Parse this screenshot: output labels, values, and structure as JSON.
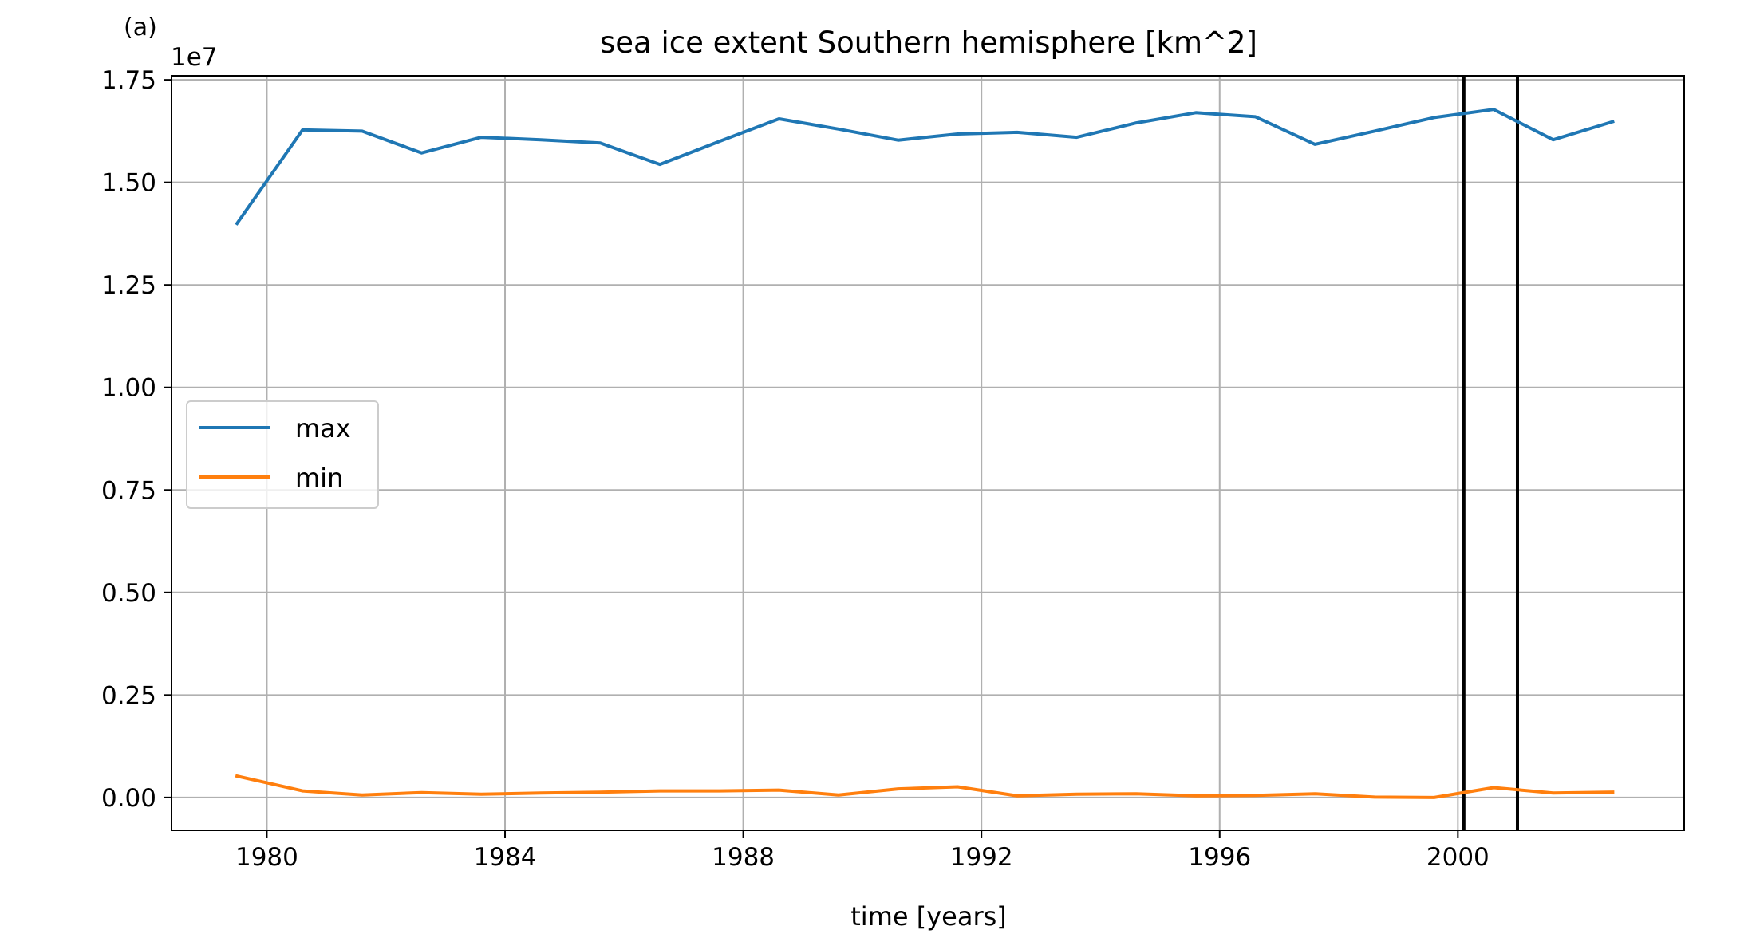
{
  "chart_data": {
    "type": "line",
    "panel_label": "(a)",
    "title": "sea ice extent Southern hemisphere [km^2]",
    "xlabel": "time [years]",
    "ylabel": "",
    "y_offset_label": "1e7",
    "xlim": [
      1978.4,
      2003.8
    ],
    "ylim": [
      -0.08,
      1.76
    ],
    "y_scale_factor": 10000000,
    "xticks": [
      1980,
      1984,
      1988,
      1992,
      1996,
      2000
    ],
    "xtick_labels": [
      "1980",
      "1984",
      "1988",
      "1992",
      "1996",
      "2000"
    ],
    "yticks": [
      0.0,
      0.25,
      0.5,
      0.75,
      1.0,
      1.25,
      1.5,
      1.75
    ],
    "ytick_labels": [
      "0.00",
      "0.25",
      "0.50",
      "0.75",
      "1.00",
      "1.25",
      "1.50",
      "1.75"
    ],
    "grid": true,
    "legend_position": "center-left",
    "vertical_lines": [
      2000.1,
      2001.0
    ],
    "x": [
      1979.5,
      1980.6,
      1981.6,
      1982.6,
      1983.6,
      1984.6,
      1985.6,
      1986.6,
      1987.6,
      1988.6,
      1989.6,
      1990.6,
      1991.6,
      1992.6,
      1993.6,
      1994.6,
      1995.6,
      1996.6,
      1997.6,
      1998.6,
      1999.6,
      2000.6,
      2001.6,
      2002.6
    ],
    "series": [
      {
        "name": "max",
        "color": "#1f77b4",
        "values": [
          1.4,
          1.628,
          1.625,
          1.572,
          1.61,
          1.604,
          1.596,
          1.544,
          1.6,
          1.655,
          1.63,
          1.603,
          1.618,
          1.622,
          1.61,
          1.645,
          1.67,
          1.66,
          1.593,
          1.625,
          1.658,
          1.678,
          1.604,
          1.648
        ]
      },
      {
        "name": "min",
        "color": "#ff7f0e",
        "values": [
          0.052,
          0.016,
          0.006,
          0.012,
          0.008,
          0.011,
          0.013,
          0.016,
          0.016,
          0.018,
          0.006,
          0.021,
          0.026,
          0.004,
          0.008,
          0.009,
          0.004,
          0.005,
          0.009,
          0.001,
          0.0,
          0.024,
          0.011,
          0.013
        ]
      }
    ]
  }
}
